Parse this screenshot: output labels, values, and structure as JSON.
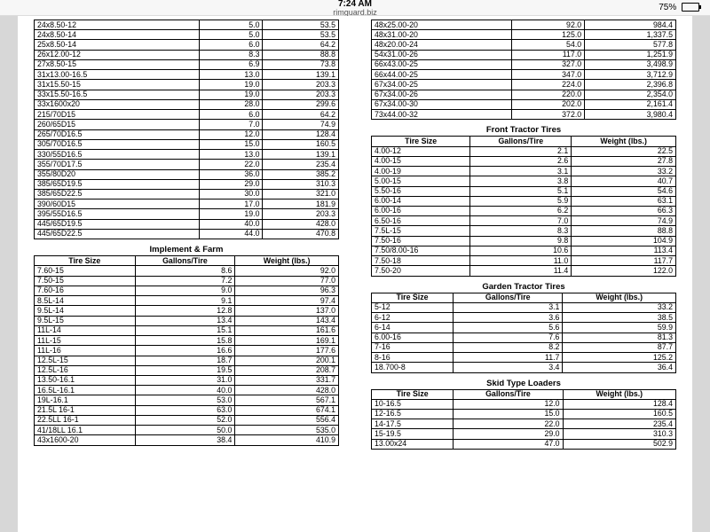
{
  "statusbar": {
    "time": "7:24 AM",
    "url": "rimguard.biz",
    "battery_pct": "75%",
    "battery_fill_pct": 75
  },
  "columns": {
    "size": "Tire Size",
    "gal": "Gallons/Tire",
    "wt": "Weight (lbs.)"
  },
  "styling": {
    "font_family": "Arial",
    "font_size_pt": 8.8,
    "border_color": "#000000",
    "background": "#ffffff",
    "gutter_color": "#d7d7d7",
    "col_align": [
      "left",
      "right",
      "right"
    ]
  },
  "left": [
    {
      "title": null,
      "header": false,
      "rows": [
        [
          "24x8.50-12",
          "5.0",
          "53.5"
        ],
        [
          "24x8.50-14",
          "5.0",
          "53.5"
        ],
        [
          "25x8.50-14",
          "6.0",
          "64.2"
        ],
        [
          "26x12.00-12",
          "8.3",
          "88.8"
        ],
        [
          "27x8.50-15",
          "6.9",
          "73.8"
        ],
        [
          "31x13.00-16.5",
          "13.0",
          "139.1"
        ],
        [
          "31x15.50-15",
          "19.0",
          "203.3"
        ],
        [
          "33x15.50-16.5",
          "19.0",
          "203.3"
        ],
        [
          "33x1600x20",
          "28.0",
          "299.6"
        ],
        [
          "215/70D15",
          "6.0",
          "64.2"
        ],
        [
          "260/65D15",
          "7.0",
          "74.9"
        ],
        [
          "265/70D16.5",
          "12.0",
          "128.4"
        ],
        [
          "305/70D16.5",
          "15.0",
          "160.5"
        ],
        [
          "330/55D16.5",
          "13.0",
          "139.1"
        ],
        [
          "355/70D17.5",
          "22.0",
          "235.4"
        ],
        [
          "355/80D20",
          "36.0",
          "385.2"
        ],
        [
          "385/65D19.5",
          "29.0",
          "310.3"
        ],
        [
          "385/65D22.5",
          "30.0",
          "321.0"
        ],
        [
          "390/60D15",
          "17.0",
          "181.9"
        ],
        [
          "395/55D16.5",
          "19.0",
          "203.3"
        ],
        [
          "445/65D19.5",
          "40.0",
          "428.0"
        ],
        [
          "445/65D22.5",
          "44.0",
          "470.8"
        ]
      ]
    },
    {
      "title": "Implement & Farm",
      "header": true,
      "rows": [
        [
          "7.60-15",
          "8.6",
          "92.0"
        ],
        [
          "7.50-15",
          "7.2",
          "77.0"
        ],
        [
          "7.60-16",
          "9.0",
          "96.3"
        ],
        [
          "8.5L-14",
          "9.1",
          "97.4"
        ],
        [
          "9.5L-14",
          "12.8",
          "137.0"
        ],
        [
          "9.5L-15",
          "13.4",
          "143.4"
        ],
        [
          "11L-14",
          "15.1",
          "161.6"
        ],
        [
          "11L-15",
          "15.8",
          "169.1"
        ],
        [
          "11L-16",
          "16.6",
          "177.6"
        ],
        [
          "12.5L-15",
          "18.7",
          "200.1"
        ],
        [
          "12.5L-16",
          "19.5",
          "208.7"
        ],
        [
          "13.50-16.1",
          "31.0",
          "331.7"
        ],
        [
          "16.5L-16.1",
          "40.0",
          "428.0"
        ],
        [
          "19L-16.1",
          "53.0",
          "567.1"
        ],
        [
          "21.5L 16-1",
          "63.0",
          "674.1"
        ],
        [
          "22.5LL 16-1",
          "52.0",
          "556.4"
        ],
        [
          "41/18LL 16.1",
          "50.0",
          "535.0"
        ],
        [
          "43x1600-20",
          "38.4",
          "410.9"
        ]
      ]
    }
  ],
  "right": [
    {
      "title": null,
      "header": false,
      "rows": [
        [
          "48x25.00-20",
          "92.0",
          "984.4"
        ],
        [
          "48x31.00-20",
          "125.0",
          "1,337.5"
        ],
        [
          "48x20.00-24",
          "54.0",
          "577.8"
        ],
        [
          "54x31.00-26",
          "117.0",
          "1,251.9"
        ],
        [
          "66x43.00-25",
          "327.0",
          "3,498.9"
        ],
        [
          "66x44.00-25",
          "347.0",
          "3,712.9"
        ],
        [
          "67x34.00-25",
          "224.0",
          "2,396.8"
        ],
        [
          "67x34.00-26",
          "220.0",
          "2,354.0"
        ],
        [
          "67x34.00-30",
          "202.0",
          "2,161.4"
        ],
        [
          "73x44.00-32",
          "372.0",
          "3,980.4"
        ]
      ]
    },
    {
      "title": "Front Tractor Tires",
      "header": true,
      "rows": [
        [
          "4.00-12",
          "2.1",
          "22.5"
        ],
        [
          "4.00-15",
          "2.6",
          "27.8"
        ],
        [
          "4.00-19",
          "3.1",
          "33.2"
        ],
        [
          "5.00-15",
          "3.8",
          "40.7"
        ],
        [
          "5.50-16",
          "5.1",
          "54.6"
        ],
        [
          "6.00-14",
          "5.9",
          "63.1"
        ],
        [
          "6.00-16",
          "6.2",
          "66.3"
        ],
        [
          "6.50-16",
          "7.0",
          "74.9"
        ],
        [
          "7.5L-15",
          "8.3",
          "88.8"
        ],
        [
          "7.50-16",
          "9.8",
          "104.9"
        ],
        [
          "7.50/8.00-16",
          "10.6",
          "113.4"
        ],
        [
          "7.50-18",
          "11.0",
          "117.7"
        ],
        [
          "7.50-20",
          "11.4",
          "122.0"
        ]
      ]
    },
    {
      "title": "Garden Tractor Tires",
      "header": true,
      "rows": [
        [
          "5-12",
          "3.1",
          "33.2"
        ],
        [
          "6-12",
          "3.6",
          "38.5"
        ],
        [
          "6-14",
          "5.6",
          "59.9"
        ],
        [
          "6.00-16",
          "7.6",
          "81.3"
        ],
        [
          "7-16",
          "8.2",
          "87.7"
        ],
        [
          "8-16",
          "11.7",
          "125.2"
        ],
        [
          "18.700-8",
          "3.4",
          "36.4"
        ]
      ]
    },
    {
      "title": "Skid Type Loaders",
      "header": true,
      "rows": [
        [
          "10-16.5",
          "12.0",
          "128.4"
        ],
        [
          "12-16.5",
          "15.0",
          "160.5"
        ],
        [
          "14-17.5",
          "22.0",
          "235.4"
        ],
        [
          "15-19.5",
          "29.0",
          "310.3"
        ],
        [
          "13.00x24",
          "47.0",
          "502.9"
        ]
      ]
    }
  ]
}
